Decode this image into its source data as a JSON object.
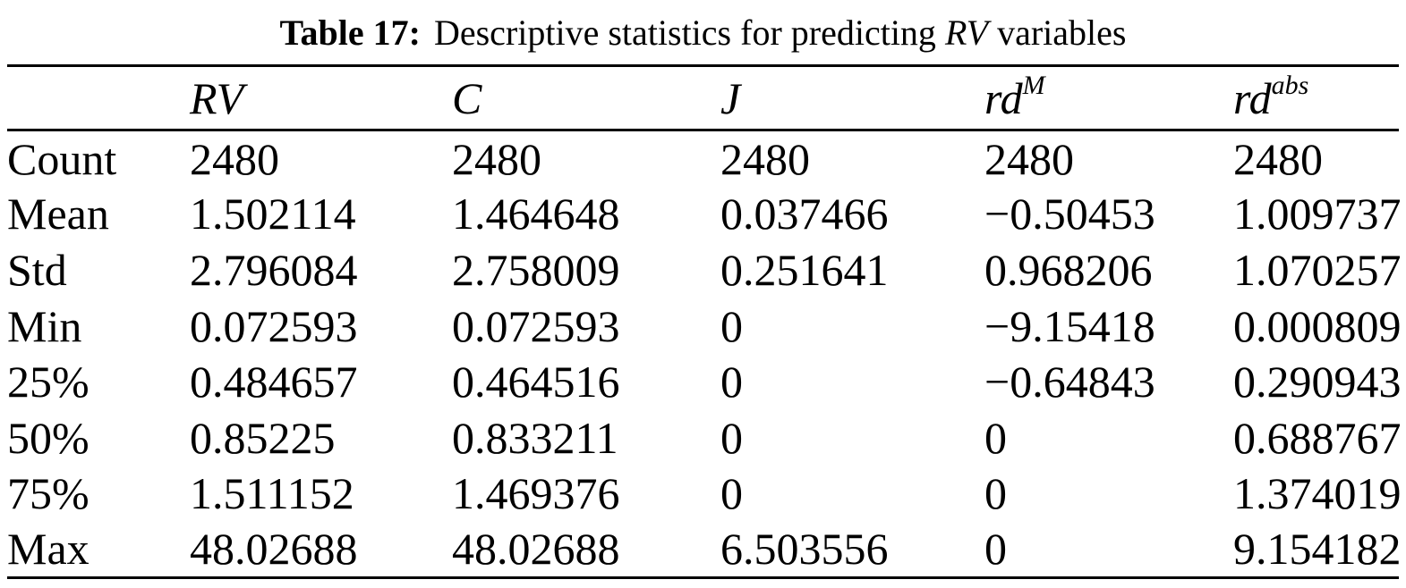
{
  "caption": {
    "label": "Table 17:",
    "text_before_term": "Descriptive statistics for predicting ",
    "term": "RV",
    "text_after_term": " variables"
  },
  "table": {
    "headers": [
      {
        "base": "RV",
        "sup": ""
      },
      {
        "base": "C",
        "sup": ""
      },
      {
        "base": "J",
        "sup": ""
      },
      {
        "base": "rd",
        "sup": "M"
      },
      {
        "base": "rd",
        "sup": "abs"
      }
    ],
    "rows": [
      {
        "label": "Count",
        "values": [
          "2480",
          "2480",
          "2480",
          "2480",
          "2480"
        ]
      },
      {
        "label": "Mean",
        "values": [
          "1.502114",
          "1.464648",
          "0.037466",
          "−0.50453",
          "1.009737"
        ]
      },
      {
        "label": "Std",
        "values": [
          "2.796084",
          "2.758009",
          "0.251641",
          "0.968206",
          "1.070257"
        ]
      },
      {
        "label": "Min",
        "values": [
          "0.072593",
          "0.072593",
          "0",
          "−9.15418",
          "0.000809"
        ]
      },
      {
        "label": "25%",
        "values": [
          "0.484657",
          "0.464516",
          "0",
          "−0.64843",
          "0.290943"
        ]
      },
      {
        "label": "50%",
        "values": [
          "0.85225",
          "0.833211",
          "0",
          "0",
          "0.688767"
        ]
      },
      {
        "label": "75%",
        "values": [
          "1.511152",
          "1.469376",
          "0",
          "0",
          "1.374019"
        ]
      },
      {
        "label": "Max",
        "values": [
          "48.02688",
          "48.02688",
          "6.503556",
          "0",
          "9.154182"
        ]
      }
    ]
  },
  "colors": {
    "text": "#000000",
    "background": "#ffffff",
    "rule": "#000000"
  }
}
